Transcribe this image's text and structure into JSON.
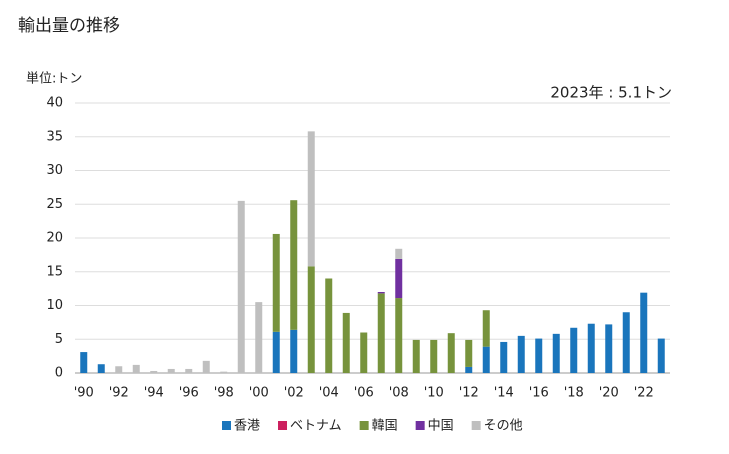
{
  "chart_data": {
    "type": "bar",
    "stacked": true,
    "title": "輸出量の推移",
    "y_axis_label": "単位:トン",
    "annotation": "2023年 : 5.1トン",
    "categories": [
      "'90",
      null,
      "'92",
      null,
      "'94",
      null,
      "'96",
      null,
      "'98",
      null,
      "'00",
      null,
      "'02",
      null,
      "'04",
      null,
      "'06",
      null,
      "'08",
      null,
      "'10",
      null,
      "'12",
      null,
      "'14",
      null,
      "'16",
      null,
      "'18",
      null,
      "'20",
      null,
      "'22",
      null
    ],
    "series": [
      {
        "name": "香港",
        "color": "#1a75bc",
        "values": [
          3.1,
          1.3,
          0,
          0,
          0,
          0,
          0,
          0,
          0,
          0,
          0,
          6.1,
          6.4,
          0,
          0,
          0,
          0,
          0,
          0,
          0,
          0,
          0,
          0.9,
          3.9,
          4.6,
          5.5,
          5.1,
          5.8,
          6.7,
          7.3,
          7.2,
          9.0,
          11.9,
          5.1
        ]
      },
      {
        "name": "ベトナム",
        "color": "#cc1f5e",
        "values": [
          0,
          0,
          0,
          0,
          0,
          0,
          0,
          0,
          0,
          0,
          0,
          0,
          0,
          0,
          0,
          0,
          0,
          0,
          0,
          0,
          0,
          0,
          0,
          0,
          0,
          0,
          0,
          0,
          0,
          0,
          0,
          0,
          0,
          0
        ]
      },
      {
        "name": "韓国",
        "color": "#77933c",
        "values": [
          0,
          0,
          0,
          0,
          0,
          0,
          0,
          0,
          0,
          0,
          0,
          14.5,
          19.2,
          15.8,
          14.0,
          8.9,
          6.0,
          11.8,
          11.1,
          4.9,
          4.9,
          5.9,
          4.0,
          5.4,
          0,
          0,
          0,
          0,
          0,
          0,
          0,
          0,
          0,
          0
        ]
      },
      {
        "name": "中国",
        "color": "#7030a0",
        "values": [
          0,
          0,
          0,
          0,
          0,
          0,
          0,
          0,
          0,
          0,
          0,
          0,
          0,
          0,
          0,
          0,
          0,
          0.2,
          5.8,
          0,
          0,
          0,
          0,
          0,
          0,
          0,
          0,
          0,
          0,
          0,
          0,
          0,
          0,
          0
        ]
      },
      {
        "name": "その他",
        "color": "#bfbfbf",
        "values": [
          0,
          0,
          1.0,
          1.2,
          0.3,
          0.6,
          0.6,
          1.8,
          0.2,
          25.5,
          10.5,
          0,
          0,
          20.0,
          0,
          0,
          0,
          0,
          1.5,
          0,
          0,
          0,
          0,
          0,
          0,
          0,
          0,
          0,
          0,
          0,
          0,
          0,
          0,
          0
        ]
      }
    ],
    "ylim": [
      0,
      40
    ],
    "yticks": [
      0,
      5,
      10,
      15,
      20,
      25,
      30,
      35,
      40
    ],
    "grid": true,
    "legend": "bottom"
  }
}
